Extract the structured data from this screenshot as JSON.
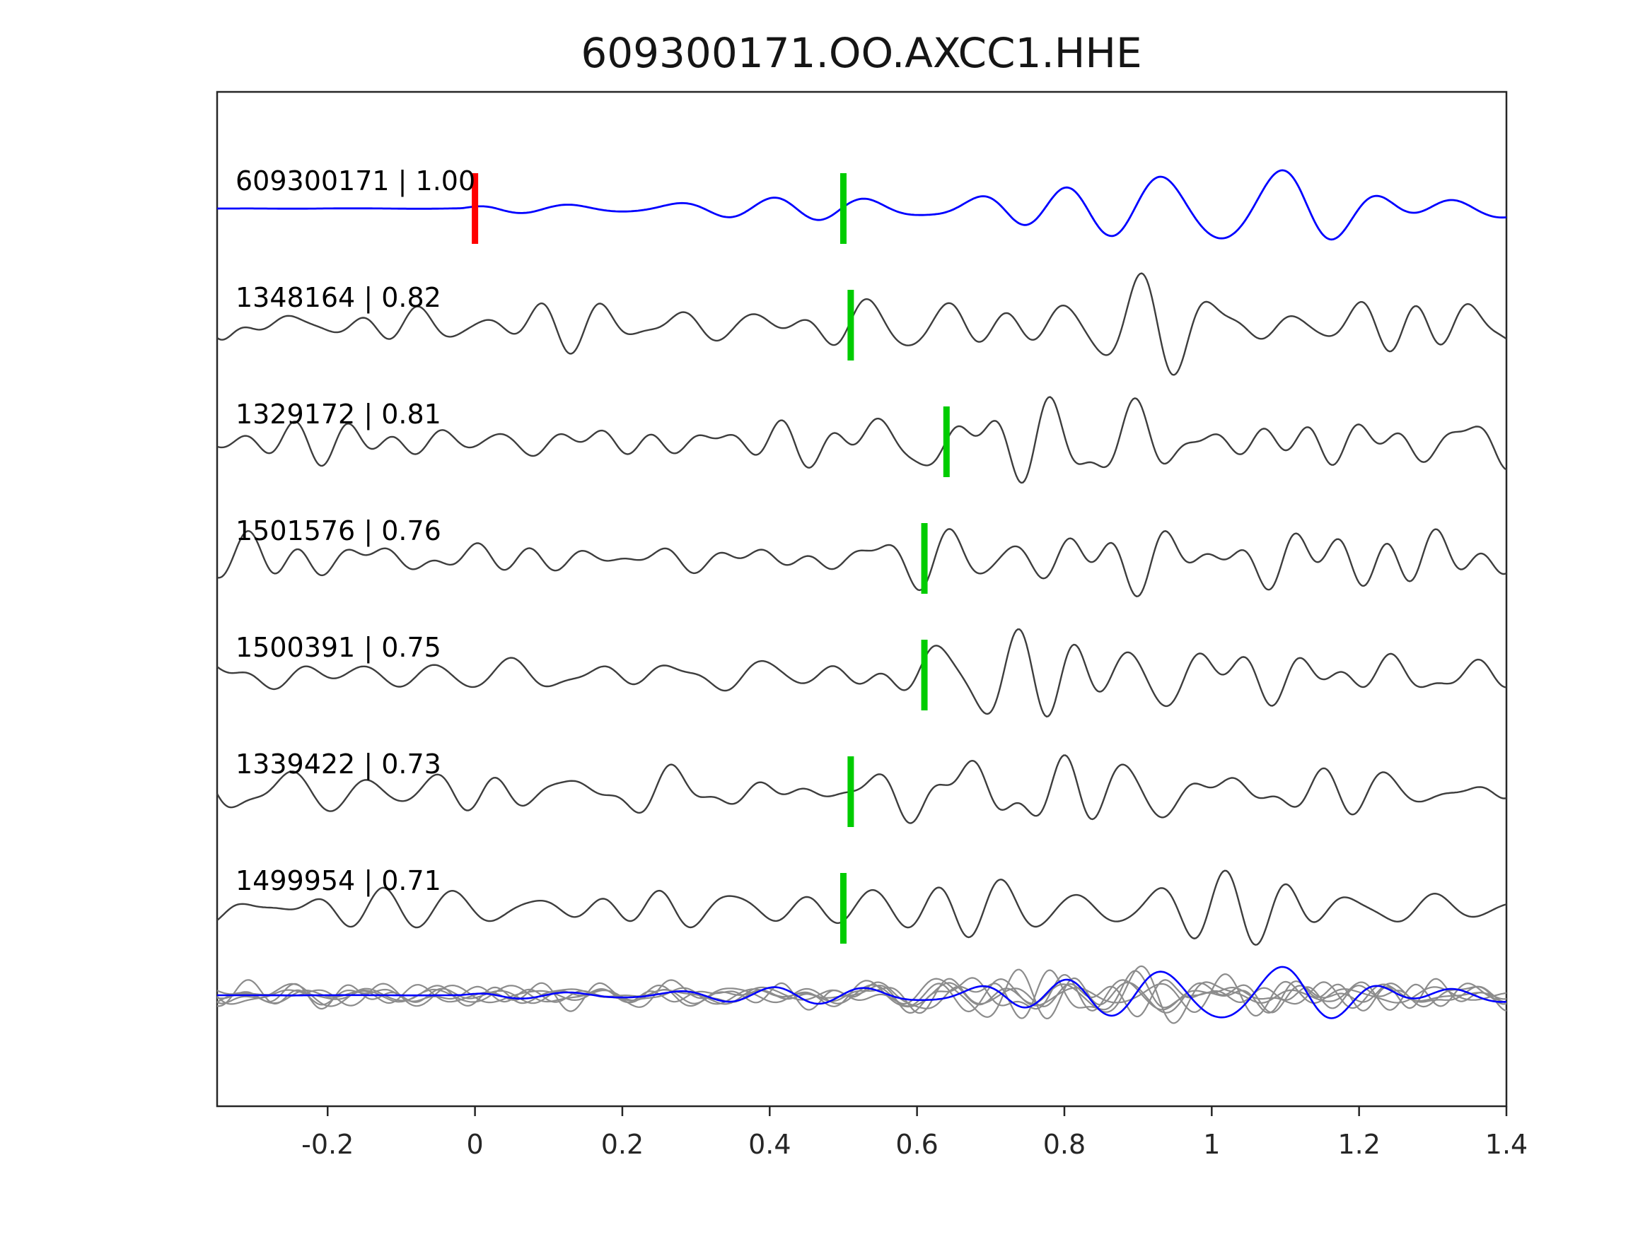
{
  "title": "609300171.OO.AXCC1.HHE",
  "axis_color": "#262626",
  "markers": {
    "origin_color": "#ff0000",
    "pick_color": "#00cc00"
  },
  "chart_data": {
    "type": "line",
    "title": "609300171.OO.AXCC1.HHE",
    "xlabel": "",
    "ylabel": "",
    "xlim": [
      -0.35,
      1.4
    ],
    "grid": false,
    "legend": false,
    "x_ticks": [
      {
        "value": -0.2,
        "label": "-0.2"
      },
      {
        "value": 0,
        "label": "0"
      },
      {
        "value": 0.2,
        "label": "0.2"
      },
      {
        "value": 0.4,
        "label": "0.4"
      },
      {
        "value": 0.6,
        "label": "0.6"
      },
      {
        "value": 0.8,
        "label": "0.8"
      },
      {
        "value": 1,
        "label": "1"
      },
      {
        "value": 1.2,
        "label": "1.2"
      },
      {
        "value": 1.4,
        "label": "1.4"
      }
    ],
    "rows": [
      {
        "id": "609300171",
        "correlation": 1.0,
        "label": "609300171 | 1.00",
        "role": "template",
        "color": "#0000ff",
        "origin_marker_time": 0.0,
        "pick_marker_time": 0.5
      },
      {
        "id": "1348164",
        "correlation": 0.82,
        "label": "1348164 | 0.82",
        "role": "detection",
        "color": "#3d3d3d",
        "pick_marker_time": 0.51
      },
      {
        "id": "1329172",
        "correlation": 0.81,
        "label": "1329172 | 0.81",
        "role": "detection",
        "color": "#3d3d3d",
        "pick_marker_time": 0.64
      },
      {
        "id": "1501576",
        "correlation": 0.76,
        "label": "1501576 | 0.76",
        "role": "detection",
        "color": "#3d3d3d",
        "pick_marker_time": 0.61
      },
      {
        "id": "1500391",
        "correlation": 0.75,
        "label": "1500391 | 0.75",
        "role": "detection",
        "color": "#3d3d3d",
        "pick_marker_time": 0.61
      },
      {
        "id": "1339422",
        "correlation": 0.73,
        "label": "1339422 | 0.73",
        "role": "detection",
        "color": "#3d3d3d",
        "pick_marker_time": 0.51
      },
      {
        "id": "1499954",
        "correlation": 0.71,
        "label": "1499954 | 0.71",
        "role": "detection",
        "color": "#3d3d3d",
        "pick_marker_time": 0.5
      }
    ],
    "overlay": {
      "description": "all detection traces superimposed with the template trace",
      "detection_color": "#8c8c8c",
      "template_color": "#0000ff"
    }
  }
}
